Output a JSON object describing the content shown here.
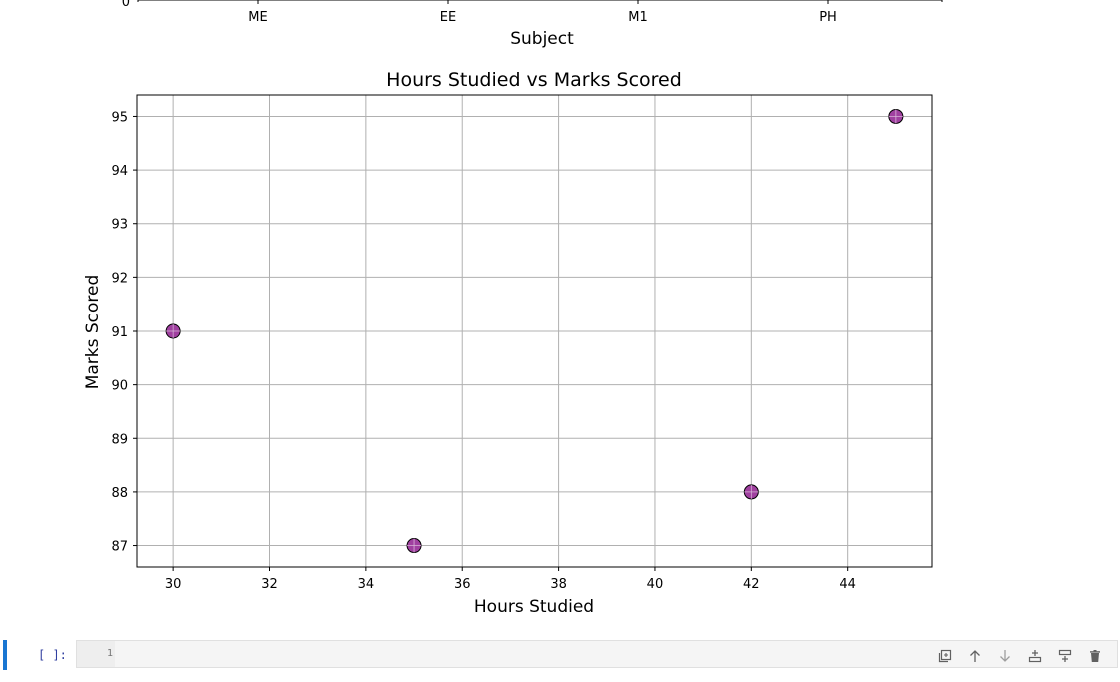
{
  "bar_chart_fragment": {
    "y_tick_zero": "0",
    "categories": [
      "ME",
      "EE",
      "M1",
      "PH"
    ],
    "xlabel": "Subject"
  },
  "chart_data": {
    "type": "scatter",
    "title": "Hours Studied vs Marks Scored",
    "xlabel": "Hours Studied",
    "ylabel": "Marks Scored",
    "x": [
      30,
      35,
      42,
      45
    ],
    "y": [
      91,
      87,
      88,
      95
    ],
    "xlim": [
      29.25,
      45.75
    ],
    "ylim": [
      86.6,
      95.4
    ],
    "xticks": [
      30,
      32,
      34,
      36,
      38,
      40,
      42,
      44
    ],
    "yticks": [
      87,
      88,
      89,
      90,
      91,
      92,
      93,
      94,
      95
    ],
    "grid": true,
    "marker_color": "#800080",
    "marker_edge": "#000000"
  },
  "cell": {
    "prompt": "[ ]:",
    "line_number": "1"
  },
  "toolbar": {
    "icons": [
      "duplicate-icon",
      "move-up-icon",
      "move-down-icon",
      "insert-above-icon",
      "insert-below-icon",
      "delete-icon"
    ]
  }
}
